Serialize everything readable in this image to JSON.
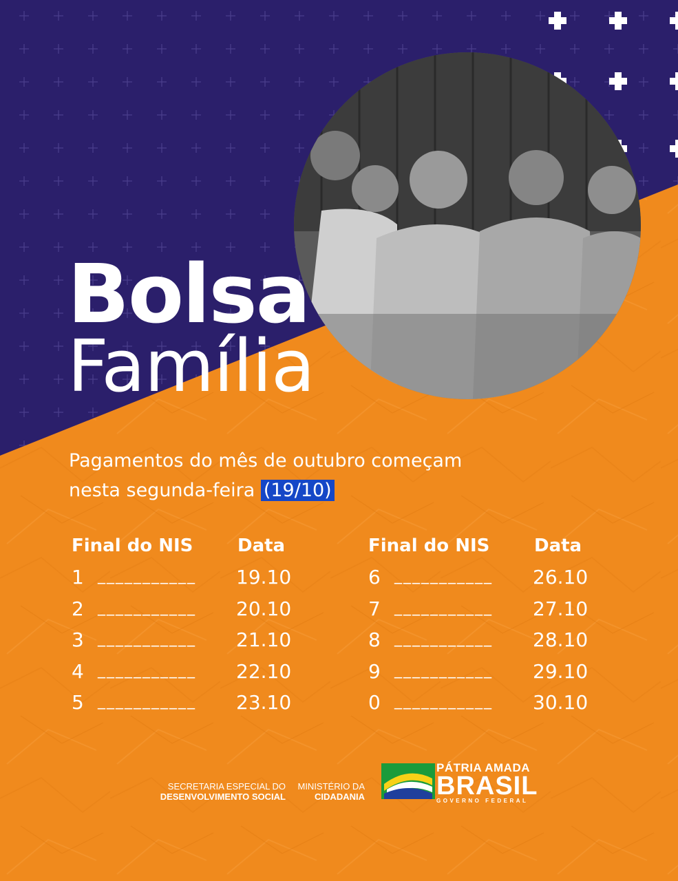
{
  "title": {
    "line1": "Bolsa",
    "line2": "Família"
  },
  "subtitle": {
    "line1": "Pagamentos do mês de outubro começam",
    "line2_prefix": "nesta segunda-feira ",
    "highlight": "(19/10)"
  },
  "schedule": {
    "header_nis": "Final do NIS",
    "header_data": "Data",
    "left": [
      {
        "digit": "1",
        "date": "19.10"
      },
      {
        "digit": "2",
        "date": "20.10"
      },
      {
        "digit": "3",
        "date": "21.10"
      },
      {
        "digit": "4",
        "date": "22.10"
      },
      {
        "digit": "5",
        "date": "23.10"
      }
    ],
    "right": [
      {
        "digit": "6",
        "date": "26.10"
      },
      {
        "digit": "7",
        "date": "27.10"
      },
      {
        "digit": "8",
        "date": "28.10"
      },
      {
        "digit": "9",
        "date": "29.10"
      },
      {
        "digit": "0",
        "date": "30.10"
      }
    ],
    "leader": "___________"
  },
  "footer": {
    "secretaria_line1": "SECRETARIA ESPECIAL DO",
    "secretaria_line2": "DESENVOLVIMENTO SOCIAL",
    "ministerio_line1": "MINISTÉRIO DA",
    "ministerio_line2": "CIDADANIA",
    "brand_line1": "PÁTRIA AMADA",
    "brand_line2": "BRASIL",
    "brand_line3": "GOVERNO FEDERAL"
  },
  "colors": {
    "purple": "#2b1f6b",
    "orange": "#f08a1d",
    "highlight_blue": "#1547c7",
    "white": "#ffffff"
  },
  "icons": [
    "plus-icon",
    "brasil-flag-logo"
  ]
}
